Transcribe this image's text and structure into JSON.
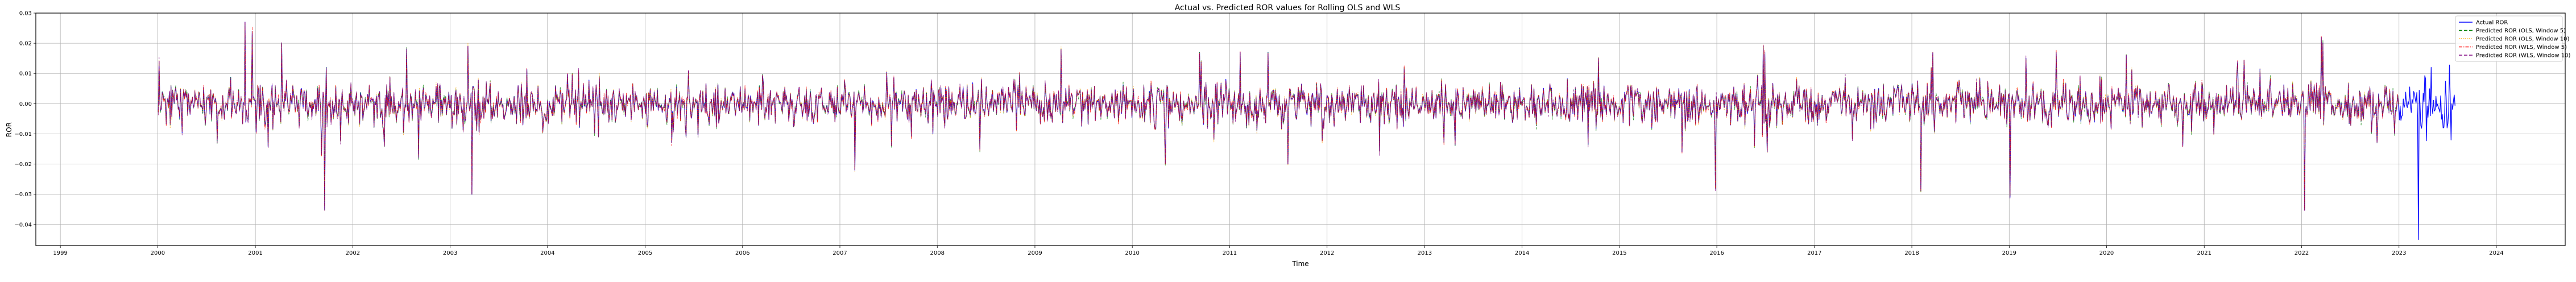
{
  "chart_data": {
    "type": "line",
    "title": "Actual vs. Predicted ROR values for Rolling OLS and WLS",
    "xlabel": "Time",
    "ylabel": "ROR",
    "xlim": [
      "1998-10-01",
      "2024-09-15"
    ],
    "ylim": [
      -0.047,
      0.03
    ],
    "x_ticks": [
      "1999",
      "2000",
      "2001",
      "2002",
      "2003",
      "2004",
      "2005",
      "2006",
      "2007",
      "2008",
      "2009",
      "2010",
      "2011",
      "2012",
      "2013",
      "2014",
      "2015",
      "2016",
      "2017",
      "2018",
      "2019",
      "2020",
      "2021",
      "2022",
      "2023",
      "2024"
    ],
    "y_ticks": [
      -0.04,
      -0.03,
      -0.02,
      -0.01,
      0.0,
      0.01,
      0.02,
      0.03
    ],
    "y_tick_labels": [
      "−0.04",
      "−0.03",
      "−0.02",
      "−0.01",
      "0.00",
      "0.01",
      "0.02",
      "0.03"
    ],
    "grid": true,
    "legend_position": "top-right",
    "series": [
      {
        "name": "Actual ROR",
        "color": "#0000ff",
        "style": "solid"
      },
      {
        "name": "Predicted ROR (OLS, Window 5)",
        "color": "#008000",
        "style": "dashed"
      },
      {
        "name": "Predicted ROR (OLS, Window 10)",
        "color": "#ffa500",
        "style": "dotted"
      },
      {
        "name": "Predicted ROR (WLS, Window 5)",
        "color": "#ff0000",
        "style": "dashdot"
      },
      {
        "name": "Predicted ROR (WLS, Window 10)",
        "color": "#800080",
        "style": "dashed"
      }
    ],
    "date_range": [
      "2000-01-03",
      "2023-07-31"
    ],
    "predicted_end": "2022-12-31",
    "typical_amplitude": 0.006,
    "notable_points": [
      {
        "x": "2000-01-05",
        "y": 0.014
      },
      {
        "x": "2000-11-22",
        "y": 0.027
      },
      {
        "x": "2000-12-20",
        "y": 0.024
      },
      {
        "x": "2001-04-11",
        "y": 0.02
      },
      {
        "x": "2001-09-17",
        "y": -0.035
      },
      {
        "x": "2001-09-24",
        "y": 0.012
      },
      {
        "x": "2002-07-22",
        "y": 0.018
      },
      {
        "x": "2002-09-05",
        "y": -0.018
      },
      {
        "x": "2003-03-10",
        "y": 0.019
      },
      {
        "x": "2003-03-24",
        "y": -0.03
      },
      {
        "x": "2005-04-10",
        "y": -0.013
      },
      {
        "x": "2007-02-27",
        "y": -0.022
      },
      {
        "x": "2008-06-10",
        "y": -0.015
      },
      {
        "x": "2009-04-09",
        "y": 0.018
      },
      {
        "x": "2010-05-06",
        "y": -0.02
      },
      {
        "x": "2011-02-10",
        "y": 0.017
      },
      {
        "x": "2011-08-08",
        "y": -0.02
      },
      {
        "x": "2013-03-15",
        "y": -0.013
      },
      {
        "x": "2014-10-15",
        "y": 0.015
      },
      {
        "x": "2015-08-24",
        "y": -0.016
      },
      {
        "x": "2015-12-28",
        "y": -0.028
      },
      {
        "x": "2016-06-24",
        "y": 0.019
      },
      {
        "x": "2016-07-08",
        "y": -0.016
      },
      {
        "x": "2018-02-05",
        "y": -0.029
      },
      {
        "x": "2018-03-22",
        "y": 0.017
      },
      {
        "x": "2019-01-03",
        "y": -0.031
      },
      {
        "x": "2019-03-06",
        "y": 0.015
      },
      {
        "x": "2020-03-16",
        "y": 0.016
      },
      {
        "x": "2021-05-06",
        "y": 0.014
      },
      {
        "x": "2022-01-11",
        "y": -0.035
      },
      {
        "x": "2022-03-15",
        "y": 0.022
      },
      {
        "x": "2022-03-23",
        "y": 0.02
      },
      {
        "x": "2022-10-10",
        "y": -0.013
      },
      {
        "x": "2023-03-15",
        "y": -0.045
      },
      {
        "x": "2023-05-01",
        "y": 0.012
      },
      {
        "x": "2023-07-15",
        "y": -0.012
      }
    ]
  }
}
